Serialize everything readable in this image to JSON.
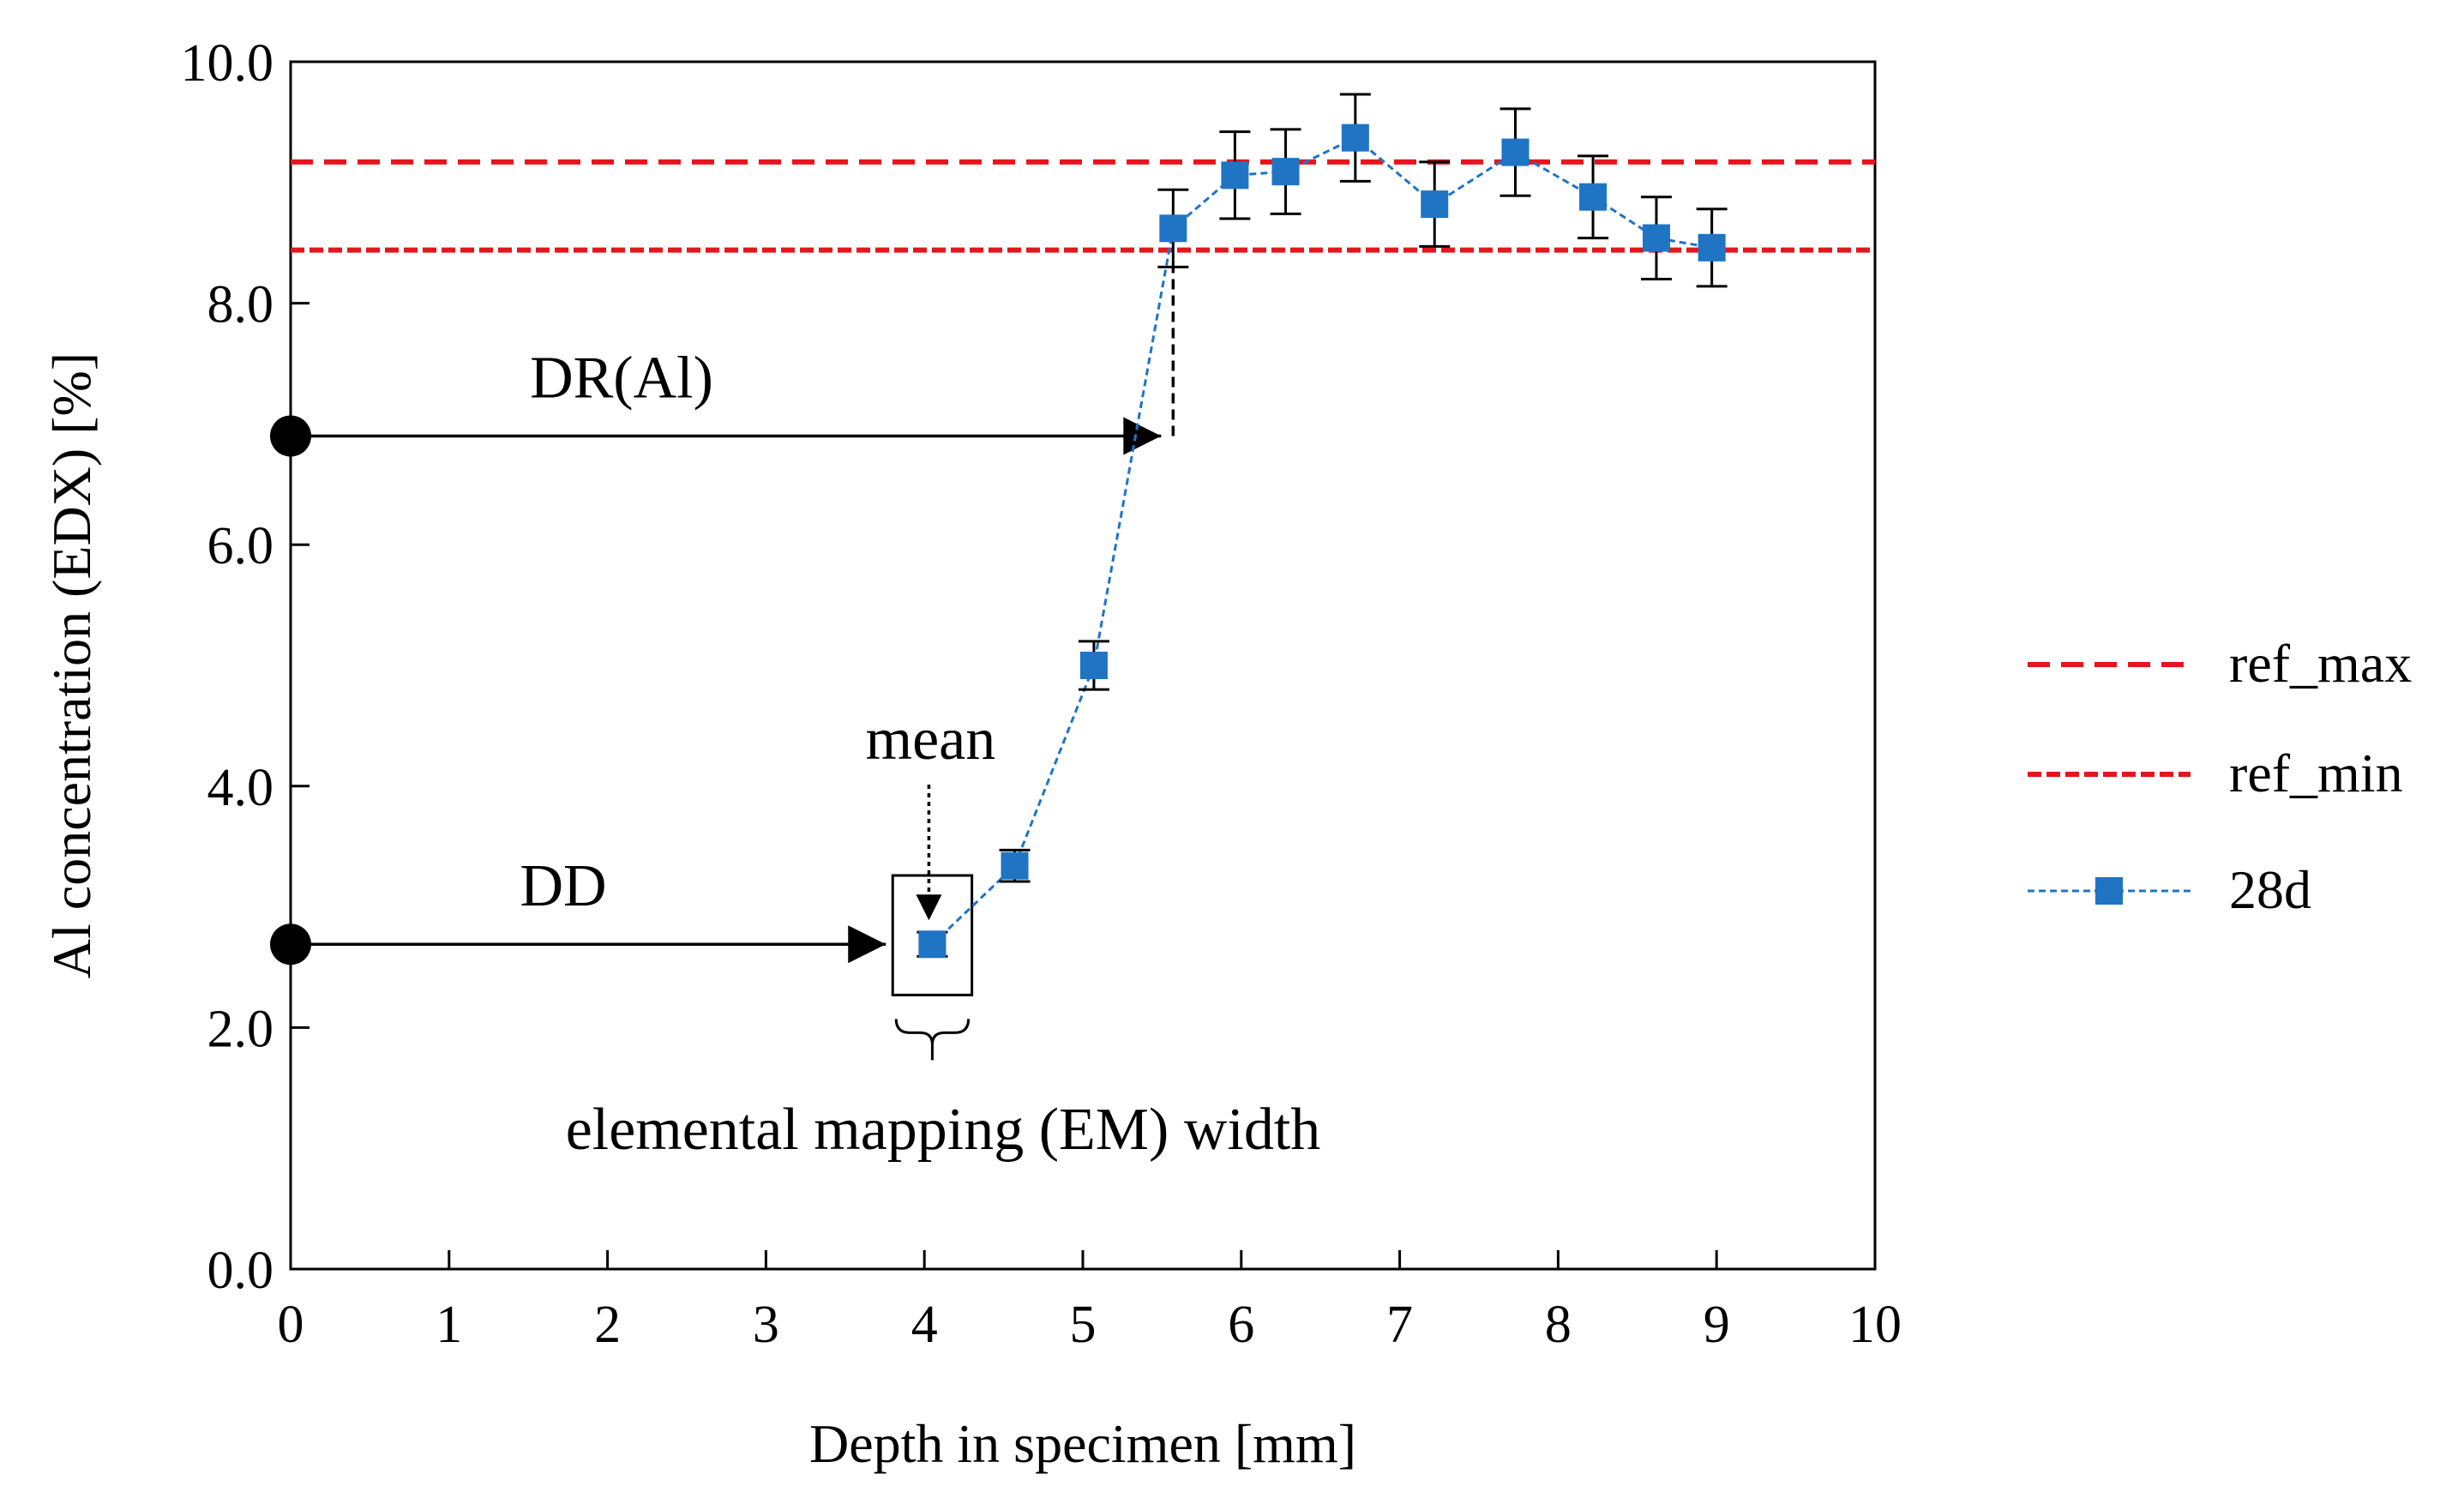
{
  "chart_data": {
    "type": "scatter",
    "title": "",
    "xlabel": "Depth in specimen [mm]",
    "ylabel": "Al concentration (EDX) [%]",
    "xlim": [
      0,
      10
    ],
    "ylim": [
      0,
      10
    ],
    "x_ticks": [
      "0",
      "1",
      "2",
      "3",
      "4",
      "5",
      "6",
      "7",
      "8",
      "9",
      "10"
    ],
    "y_ticks": [
      "0.0",
      "2.0",
      "4.0",
      "6.0",
      "8.0",
      "10.0"
    ],
    "grid": false,
    "legend_position": "right",
    "reference_lines": [
      {
        "name": "ref_max",
        "y": 9.17,
        "color": "#e8141c",
        "style": "dashed"
      },
      {
        "name": "ref_min",
        "y": 8.44,
        "color": "#e8141c",
        "style": "dotted-dashed"
      }
    ],
    "series": [
      {
        "name": "28d",
        "color": "#1f74c4",
        "marker": "square",
        "line_style": "dotted",
        "x": [
          4.05,
          4.57,
          5.07,
          5.57,
          5.96,
          6.28,
          6.72,
          7.22,
          7.73,
          8.22,
          8.62,
          8.97
        ],
        "y": [
          2.69,
          3.34,
          5.0,
          8.62,
          9.06,
          9.09,
          9.37,
          8.82,
          9.25,
          8.88,
          8.54,
          8.46
        ],
        "error": [
          0.1,
          0.13,
          0.2,
          0.32,
          0.36,
          0.35,
          0.36,
          0.35,
          0.36,
          0.34,
          0.34,
          0.32
        ]
      }
    ],
    "annotations": {
      "dr_label": "DR(Al)",
      "dr_y": 6.9,
      "dr_x_end": 5.57,
      "dd_label": "DD",
      "dd_y": 2.69,
      "dd_x_end": 3.8,
      "mean_label": "mean",
      "em_label": "elemental mapping (EM) width",
      "em_box": {
        "x0": 3.8,
        "x1": 4.3,
        "y0": 2.27,
        "y1": 3.26
      }
    }
  }
}
